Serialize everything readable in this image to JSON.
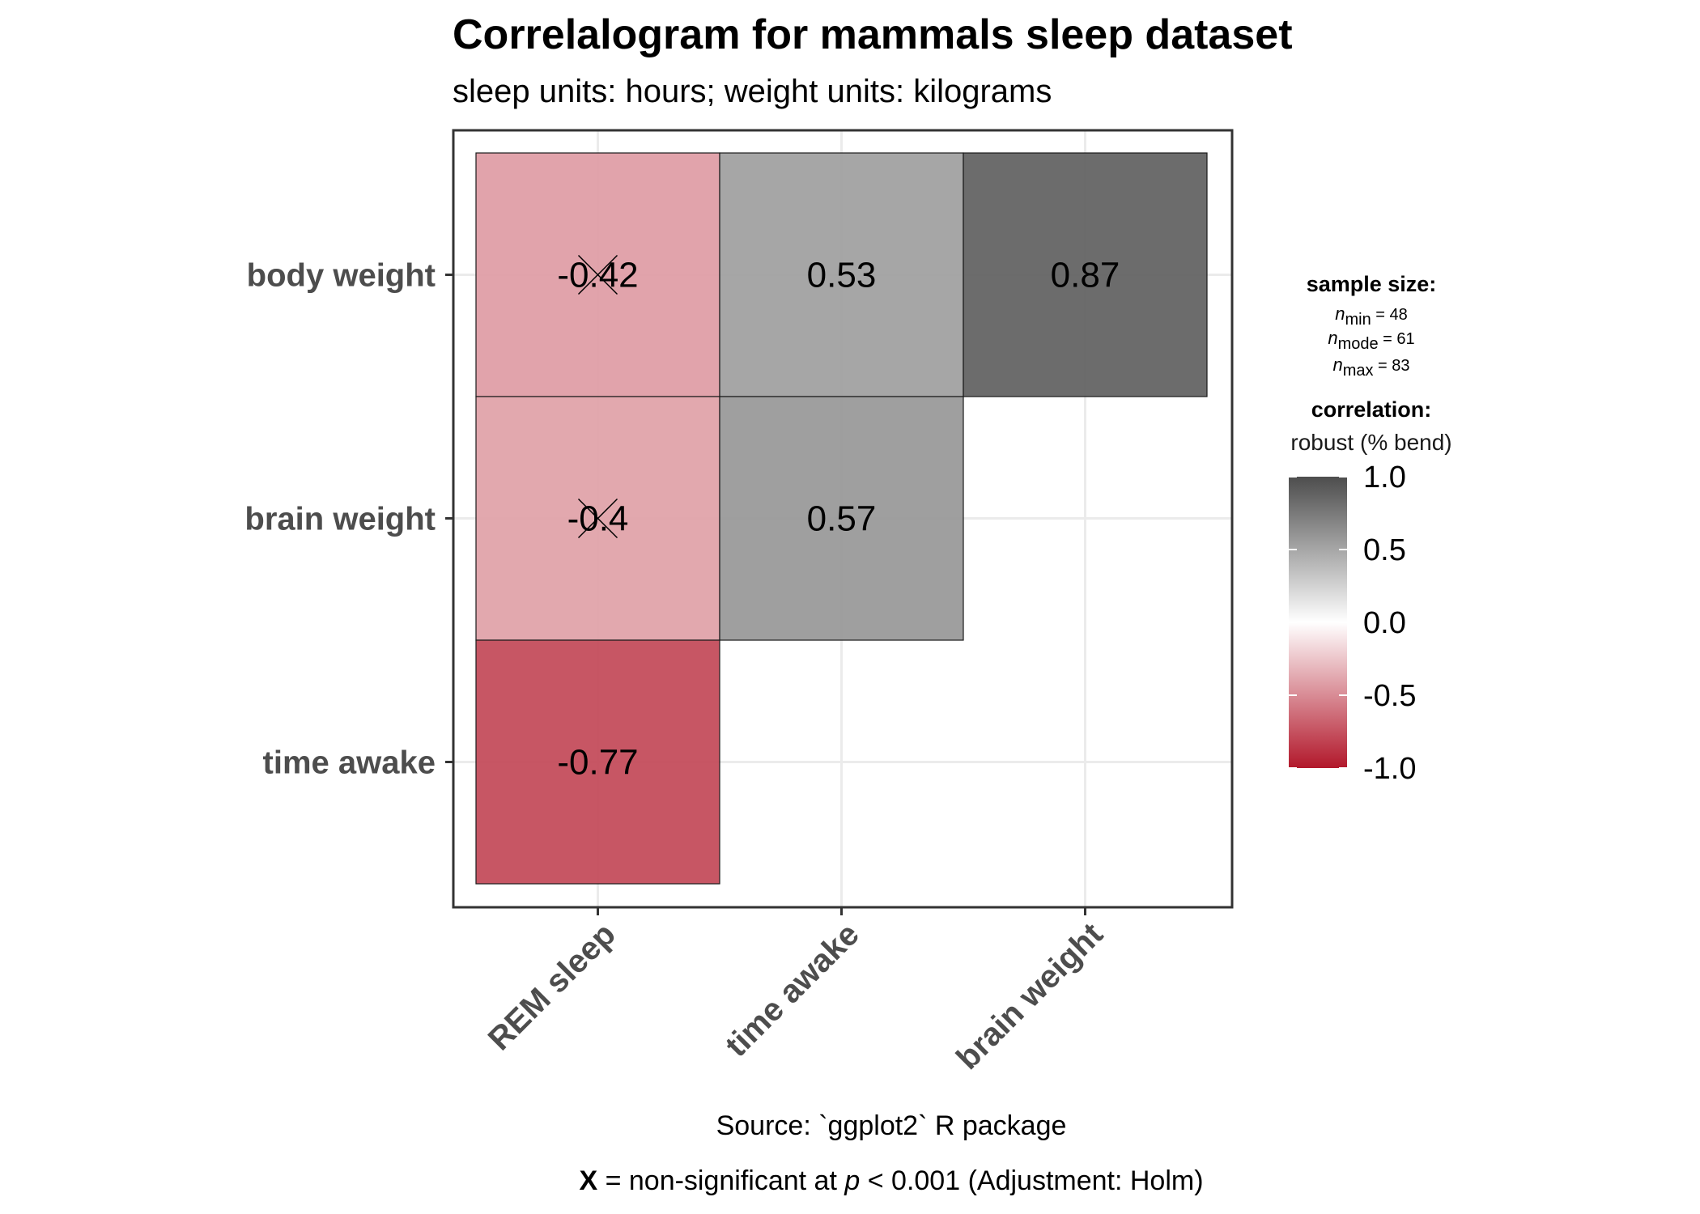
{
  "chart_data": {
    "type": "heatmap",
    "title": "Correlalogram for mammals sleep dataset",
    "subtitle": "sleep units: hours; weight units: kilograms",
    "x_categories": [
      "REM sleep",
      "time awake",
      "brain weight"
    ],
    "y_categories": [
      "time awake",
      "brain weight",
      "body weight"
    ],
    "cells": [
      {
        "x": "REM sleep",
        "y": "body weight",
        "value": -0.42,
        "label": "-0.42",
        "significant": false
      },
      {
        "x": "time awake",
        "y": "body weight",
        "value": 0.53,
        "label": "0.53",
        "significant": true
      },
      {
        "x": "brain weight",
        "y": "body weight",
        "value": 0.87,
        "label": "0.87",
        "significant": true
      },
      {
        "x": "REM sleep",
        "y": "brain weight",
        "value": -0.4,
        "label": "-0.4",
        "significant": false
      },
      {
        "x": "time awake",
        "y": "brain weight",
        "value": 0.57,
        "label": "0.57",
        "significant": true
      },
      {
        "x": "REM sleep",
        "y": "time awake",
        "value": -0.77,
        "label": "-0.77",
        "significant": true
      }
    ],
    "color_scale": {
      "low": "#b2182b",
      "mid": "#ffffff",
      "high": "#4d4d4d",
      "range": [
        -1,
        1
      ]
    },
    "legend": {
      "sample_size_title": "sample size:",
      "n_entries": [
        {
          "sub": "min",
          "eq": " = 48"
        },
        {
          "sub": "mode",
          "eq": " = 61"
        },
        {
          "sub": "max",
          "eq": " = 83"
        }
      ],
      "n_symbol": "n",
      "correlation_title": "correlation:",
      "correlation_type": "robust (% bend)",
      "ticks": [
        "1.0",
        "0.5",
        "0.0",
        "-0.5",
        "-1.0"
      ],
      "tick_values": [
        1.0,
        0.5,
        0.0,
        -0.5,
        -1.0
      ]
    },
    "caption_source": "Source: `ggplot2` R package",
    "caption_note": {
      "x": "X",
      "part1": " = non-significant at ",
      "p": "p",
      "part2": " < 0.001 (Adjustment: Holm)"
    },
    "grid": true
  }
}
